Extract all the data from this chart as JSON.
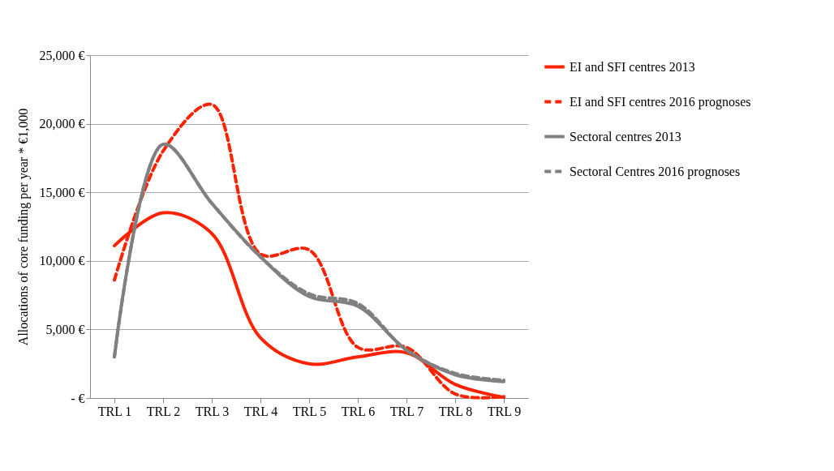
{
  "chart_data": {
    "type": "line",
    "ylabel": "Allocations of core funding per year * €1,000",
    "categories": [
      "TRL 1",
      "TRL 2",
      "TRL 3",
      "TRL 4",
      "TRL 5",
      "TRL 6",
      "TRL 7",
      "TRL 8",
      "TRL 9"
    ],
    "series": [
      {
        "name": "EI and SFI centres 2013",
        "color": "#ff2200",
        "line_style": "solid",
        "values": [
          11100,
          13500,
          12000,
          4400,
          2500,
          3000,
          3300,
          1000,
          50
        ]
      },
      {
        "name": "EI and SFI centres 2016 prognoses",
        "color": "#ff2200",
        "line_style": "dashed",
        "values": [
          8600,
          18000,
          21400,
          10500,
          10800,
          3700,
          3700,
          300,
          100
        ]
      },
      {
        "name": "Sectoral centres 2013",
        "color": "#808080",
        "line_style": "solid",
        "values": [
          3000,
          18500,
          14200,
          10300,
          7400,
          6700,
          3500,
          1700,
          1200
        ]
      },
      {
        "name": "Sectoral Centres 2016 prognoses",
        "color": "#808080",
        "line_style": "dashed",
        "values": [
          3000,
          18500,
          14200,
          10300,
          7600,
          6900,
          3500,
          1800,
          1300
        ]
      }
    ],
    "ylim": [
      0,
      25000
    ],
    "yticks": [
      {
        "value": 0,
        "label": "- €"
      },
      {
        "value": 5000,
        "label": "5,000 €"
      },
      {
        "value": 10000,
        "label": "10,000 €"
      },
      {
        "value": 15000,
        "label": "15,000 €"
      },
      {
        "value": 20000,
        "label": "20,000 €"
      },
      {
        "value": 25000,
        "label": "25,000 €"
      }
    ],
    "grid": "y",
    "legend": "right"
  }
}
